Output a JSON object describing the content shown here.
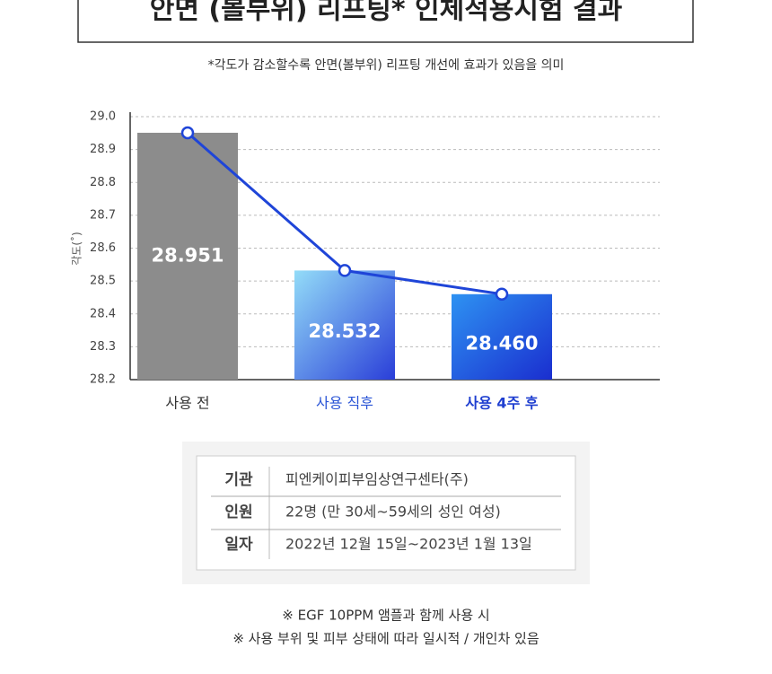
{
  "chart_data": {
    "type": "bar",
    "title": "안면 (볼부위) 리프팅* 인체적용시험 결과",
    "subtitle": "*각도가 감소할수록 안면(볼부위) 리프팅 개선에 효과가 있음을 의미",
    "y_label": "각도(˚)",
    "categories": [
      "사용 전",
      "사용 직후",
      "사용 4주 후"
    ],
    "category_colors": [
      "#333333",
      "#2b55d6",
      "#1f3fd0"
    ],
    "values": [
      28.951,
      28.532,
      28.46
    ],
    "value_labels": [
      "28.951",
      "28.532",
      "28.460"
    ],
    "colors": [
      "#8c8c8c",
      [
        "#93dcf8",
        "#2a3ed8"
      ],
      [
        "#2e92f2",
        "#1a2ecf"
      ]
    ],
    "line": true,
    "line_color": "#1f45d8",
    "ylim": [
      28.2,
      29.0
    ],
    "yticks": [
      28.2,
      28.3,
      28.4,
      28.5,
      28.6,
      28.7,
      28.8,
      28.9,
      {
        "value": 29.0,
        "label": "29.0"
      }
    ],
    "grid": true
  },
  "table": {
    "rows": [
      [
        "기관",
        "피엔케이피부임상연구센타(주)"
      ],
      [
        "인원",
        "22명 (만 30세~59세의 성인 여성)"
      ],
      [
        "일자",
        "2022년 12월 15일~2023년 1월 13일"
      ]
    ]
  },
  "notes": [
    "※ EGF 10PPM 앰플과 함께 사용 시",
    "※ 사용 부위 및 피부 상태에 따라 일시적 / 개인차 있음"
  ]
}
